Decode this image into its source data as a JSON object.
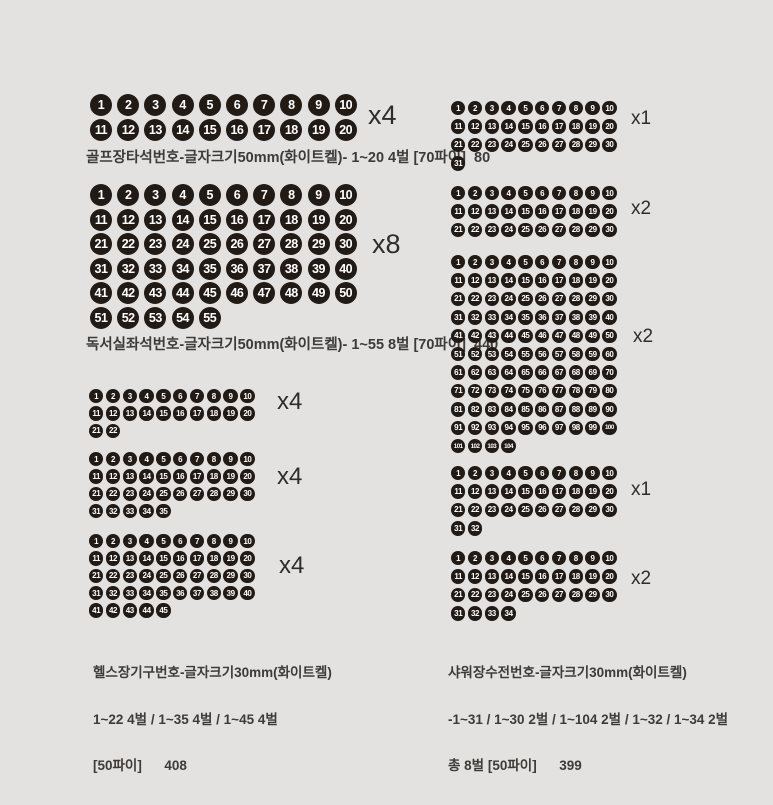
{
  "colors": {
    "background": "#e3e2e1",
    "sticker": "#211a15",
    "sticker_text": "#ffffff",
    "caption_text": "#3e3a37",
    "multiplier_text": "#2f2c2a"
  },
  "sections": [
    {
      "name": "golf-tee-seat-numbers",
      "grids": [
        {
          "start": 1,
          "end": 20,
          "columns": 10,
          "multiplier": "x4"
        }
      ],
      "caption_lines": [
        "골프장타석번호-글자크기50mm(화이트켈)- 1~20 4벌 [70파이]  80"
      ]
    },
    {
      "name": "reading-room-seat-numbers",
      "grids": [
        {
          "start": 1,
          "end": 55,
          "columns": 10,
          "multiplier": "x8"
        }
      ],
      "caption_lines": [
        "독서실좌석번호-글자크기50mm(화이트켈)- 1~55 8벌 [70파이]  440"
      ]
    },
    {
      "name": "gym-equipment-numbers",
      "grids": [
        {
          "start": 1,
          "end": 22,
          "columns": 10,
          "multiplier": "x4"
        },
        {
          "start": 1,
          "end": 35,
          "columns": 10,
          "multiplier": "x4"
        },
        {
          "start": 1,
          "end": 45,
          "columns": 10,
          "multiplier": "x4"
        }
      ],
      "caption_lines": [
        "헬스장기구번호-글자크기30mm(화이트켈)",
        "1~22 4벌 / 1~35 4벌 / 1~45 4벌",
        "[50파이]      408"
      ]
    },
    {
      "name": "shower-faucet-numbers",
      "grids": [
        {
          "start": 1,
          "end": 31,
          "columns": 10,
          "multiplier": "x1"
        },
        {
          "start": 1,
          "end": 30,
          "columns": 10,
          "multiplier": "x2"
        },
        {
          "start": 1,
          "end": 104,
          "columns": 10,
          "multiplier": "x2"
        },
        {
          "start": 1,
          "end": 32,
          "columns": 10,
          "multiplier": "x1"
        },
        {
          "start": 1,
          "end": 34,
          "columns": 10,
          "multiplier": "x2"
        }
      ],
      "caption_lines": [
        "샤워장수전번호-글자크기30mm(화이트켈)",
        "-1~31 / 1~30 2벌 / 1~104 2벌 / 1~32 / 1~34 2벌",
        "총 8벌 [50파이]      399"
      ]
    }
  ]
}
